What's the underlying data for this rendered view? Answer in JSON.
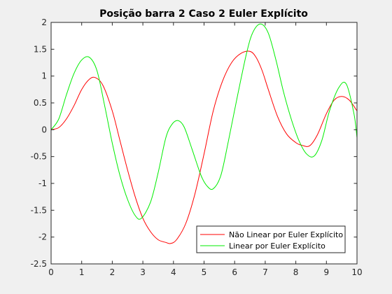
{
  "chart_data": {
    "type": "line",
    "title": "Posição barra 2 Caso 2 Euler Explícito",
    "xlabel": "",
    "ylabel": "",
    "xlim": [
      0,
      10
    ],
    "ylim": [
      -2.5,
      2
    ],
    "xticks": [
      "0",
      "1",
      "2",
      "3",
      "4",
      "5",
      "6",
      "7",
      "8",
      "9",
      "10"
    ],
    "yticks": [
      "-2.5",
      "-2",
      "-1.5",
      "-1",
      "-0.5",
      "0",
      "0.5",
      "1",
      "1.5",
      "2"
    ],
    "grid": false,
    "legend_position": "bottom-right",
    "series": [
      {
        "name": "Não Linear por Euler Explícito",
        "color": "#ff0000",
        "x": [
          0,
          0.25,
          0.5,
          0.75,
          1,
          1.25,
          1.45,
          1.7,
          2,
          2.25,
          2.5,
          2.75,
          3,
          3.25,
          3.5,
          3.75,
          3.9,
          4.1,
          4.4,
          4.7,
          5,
          5.3,
          5.6,
          5.9,
          6.2,
          6.5,
          6.7,
          6.9,
          7.1,
          7.4,
          7.7,
          8,
          8.2,
          8.45,
          8.7,
          9,
          9.25,
          9.5,
          9.75,
          10
        ],
        "y": [
          0,
          0.04,
          0.2,
          0.45,
          0.75,
          0.94,
          0.97,
          0.82,
          0.35,
          -0.2,
          -0.75,
          -1.25,
          -1.65,
          -1.9,
          -2.05,
          -2.1,
          -2.12,
          -2.05,
          -1.75,
          -1.2,
          -0.45,
          0.35,
          0.9,
          1.25,
          1.42,
          1.46,
          1.35,
          1.1,
          0.75,
          0.25,
          -0.08,
          -0.24,
          -0.29,
          -0.3,
          -0.1,
          0.3,
          0.55,
          0.62,
          0.55,
          0.35
        ]
      },
      {
        "name": "Linear por Euler Explícito",
        "color": "#00ee00",
        "x": [
          0,
          0.25,
          0.5,
          0.75,
          1,
          1.25,
          1.5,
          1.75,
          2,
          2.25,
          2.5,
          2.75,
          2.95,
          3.25,
          3.5,
          3.75,
          3.95,
          4.15,
          4.35,
          4.6,
          4.9,
          5.1,
          5.3,
          5.55,
          5.8,
          6.1,
          6.4,
          6.6,
          6.85,
          7.1,
          7.35,
          7.6,
          7.85,
          8.1,
          8.35,
          8.6,
          8.85,
          9.1,
          9.4,
          9.65,
          9.9,
          10
        ],
        "y": [
          0,
          0.2,
          0.65,
          1.05,
          1.3,
          1.35,
          1.1,
          0.45,
          -0.25,
          -0.85,
          -1.3,
          -1.6,
          -1.65,
          -1.35,
          -0.8,
          -0.15,
          0.1,
          0.17,
          0.05,
          -0.35,
          -0.85,
          -1.05,
          -1.1,
          -0.85,
          -0.2,
          0.65,
          1.45,
          1.82,
          1.97,
          1.8,
          1.3,
          0.7,
          0.2,
          -0.2,
          -0.45,
          -0.49,
          -0.2,
          0.35,
          0.78,
          0.85,
          0.3,
          -0.15
        ]
      }
    ]
  }
}
